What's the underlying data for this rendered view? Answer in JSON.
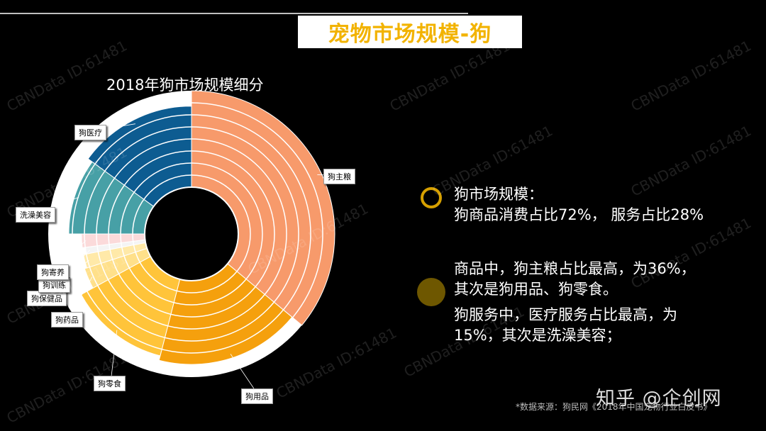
{
  "header": {
    "title": "宠物市场规模-狗"
  },
  "chart_data": {
    "type": "pie",
    "title": "2018年狗市场规模细分",
    "categories": [
      "狗主粮",
      "狗用品",
      "狗零食",
      "狗药品",
      "狗保健品",
      "狗训练",
      "狗寄养",
      "洗澡美容",
      "狗医疗"
    ],
    "values": [
      36,
      18,
      13,
      3,
      2,
      1,
      2,
      10,
      15
    ],
    "colors": [
      "#f79a6b",
      "#f5a00d",
      "#ffc43a",
      "#ffe08a",
      "#ffe9a8",
      "#f4f4f4",
      "#fbdada",
      "#47a0a6",
      "#0d5c91"
    ]
  },
  "bullets": [
    {
      "line1": "狗市场规模：",
      "line2": "狗商品消费占比72%， 服务占比28%"
    },
    {
      "line1": "商品中，狗主粮占比最高，为36%，",
      "line2": "其次是狗用品、狗零食。",
      "line3": "狗服务中，医疗服务占比最高，为",
      "line4": "15%，其次是洗澡美容；"
    }
  ],
  "source_note": "*数据来源：狗民网《2018年中国宠物行业白皮书》",
  "brand": "知乎 @企创网",
  "watermark": "CBNData ID:61481"
}
